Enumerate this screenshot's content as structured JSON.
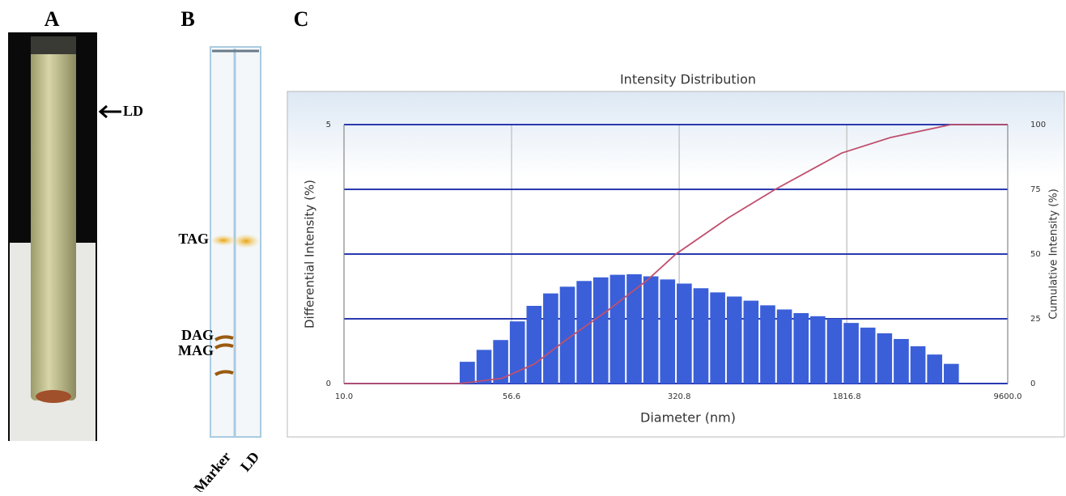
{
  "panels": {
    "a_label": "A",
    "b_label": "B",
    "c_label": "C",
    "ld_arrow": "LD",
    "tag": "TAG",
    "dag": "DAG",
    "mag": "MAG",
    "lane_marker": "Marker",
    "lane_ld": "LD"
  },
  "chart_data": {
    "type": "histogram",
    "title": "Intensity Distribution",
    "x_label": "Diameter (nm)",
    "y_label": "Differential Intensity (%)",
    "y2_label": "Cumulative Intensity (%)",
    "xscale": "log",
    "xlim": [
      10,
      9600
    ],
    "xticks": [
      {
        "value": 10,
        "label": "10.0"
      },
      56.6,
      320.8,
      1816.8,
      {
        "value": 9600,
        "label": "9600.0"
      }
    ],
    "ylim": [
      0,
      5
    ],
    "yticks": [
      0,
      5
    ],
    "y2lim": [
      0,
      100
    ],
    "y2ticks": [
      0,
      25,
      50,
      75,
      100
    ],
    "grid": true,
    "bars": {
      "color": "#3a5fd8",
      "bins": [
        33.1,
        39.4,
        46.8,
        55.6,
        66.1,
        78.5,
        93.3,
        110.9,
        131.8,
        156.7,
        186.2,
        221.3,
        263.0,
        312.6,
        371.5,
        441.6,
        524.8,
        623.7,
        741.3,
        881.0,
        1047,
        1245,
        1479,
        1758,
        2089,
        2483,
        2951,
        3508,
        4169,
        4955,
        5888
      ],
      "values": [
        0.42,
        0.65,
        0.84,
        1.2,
        1.5,
        1.74,
        1.87,
        1.98,
        2.05,
        2.1,
        2.11,
        2.07,
        2.01,
        1.93,
        1.84,
        1.76,
        1.68,
        1.6,
        1.51,
        1.43,
        1.36,
        1.3,
        1.25,
        1.17,
        1.08,
        0.97,
        0.86,
        0.72,
        0.56,
        0.38
      ]
    },
    "cumulative": {
      "color": "#c0506e",
      "axis": "y2",
      "x": [
        10,
        33.1,
        51.2,
        71.6,
        100,
        152,
        231,
        310,
        533,
        867,
        1722,
        2851,
        5335,
        9600
      ],
      "values": [
        0,
        0,
        2,
        7.5,
        17,
        28,
        40,
        50,
        64,
        75,
        89,
        95,
        100,
        100
      ]
    }
  }
}
